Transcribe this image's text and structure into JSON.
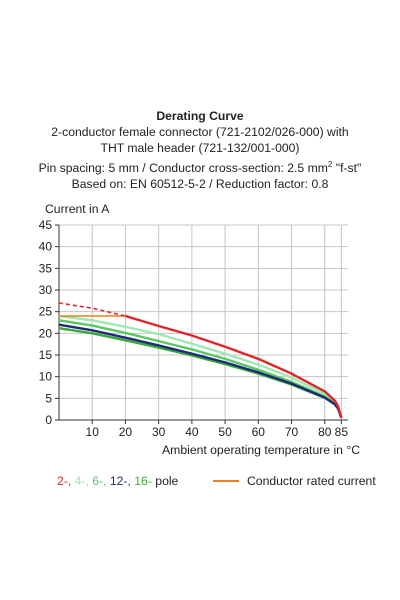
{
  "header": {
    "title": "Derating Curve",
    "line1": "2-conductor female connector (721-2102/026-000) with",
    "line2": "THT male header (721-132/001-000)",
    "line3_pre": "Pin spacing: 5 mm / Conductor cross-section: 2.5 mm",
    "line3_sup": "2",
    "line3_post": " \"f-st\"",
    "line4": "Based on: EN 60512-5-2 / Reduction factor: 0.8"
  },
  "legend": {
    "poles": [
      {
        "text": "2-",
        "color": "#e0262a"
      },
      {
        "text": "4-",
        "color": "#9fe8b4"
      },
      {
        "text": "6-",
        "color": "#59c95f"
      },
      {
        "text": "12-",
        "color": "#1f2a7a"
      },
      {
        "text": "16-",
        "color": "#3aa83a"
      }
    ],
    "separator": ", ",
    "suffix": " pole",
    "rated_label": "Conductor rated current",
    "rated_color": "#f07f1c"
  },
  "chart_data": {
    "type": "line",
    "title": "",
    "xlabel": "Ambient operating temperature in °C",
    "ylabel": "Current in A",
    "xlim": [
      0,
      87
    ],
    "ylim": [
      0,
      45
    ],
    "x_ticks": [
      10,
      20,
      30,
      40,
      50,
      60,
      70,
      80,
      85
    ],
    "y_ticks": [
      0,
      5,
      10,
      15,
      20,
      25,
      30,
      35,
      40,
      45
    ],
    "grid": true,
    "series": [
      {
        "name": "2- pole",
        "color": "#e0262a",
        "dashed_until_x": 20,
        "x": [
          0,
          10,
          20,
          30,
          40,
          50,
          60,
          70,
          80,
          83,
          84,
          85
        ],
        "y": [
          27.0,
          25.8,
          24.0,
          21.7,
          19.5,
          16.9,
          14.1,
          10.7,
          6.6,
          4.5,
          3.2,
          0.5
        ]
      },
      {
        "name": "4- pole",
        "color": "#9fe8b4",
        "x": [
          0,
          10,
          20,
          30,
          40,
          50,
          60,
          70,
          80,
          83,
          84,
          85
        ],
        "y": [
          24.0,
          23.0,
          21.5,
          19.8,
          17.6,
          15.3,
          12.8,
          9.8,
          6.0,
          4.1,
          3.0,
          0.5
        ]
      },
      {
        "name": "6- pole",
        "color": "#59c95f",
        "x": [
          0,
          10,
          20,
          30,
          40,
          50,
          60,
          70,
          80,
          83,
          84,
          85
        ],
        "y": [
          23.0,
          21.8,
          20.1,
          18.2,
          16.3,
          14.1,
          11.6,
          8.8,
          5.4,
          3.8,
          2.8,
          0.5
        ]
      },
      {
        "name": "12- pole",
        "color": "#1f2a7a",
        "x": [
          0,
          10,
          20,
          30,
          40,
          50,
          60,
          70,
          80,
          83,
          84,
          85
        ],
        "y": [
          22.0,
          20.7,
          19.0,
          17.2,
          15.3,
          13.3,
          11.0,
          8.4,
          5.2,
          3.7,
          2.7,
          0.5
        ]
      },
      {
        "name": "16- pole",
        "color": "#3aa83a",
        "x": [
          0,
          10,
          20,
          30,
          40,
          50,
          60,
          70,
          80,
          83,
          84,
          85
        ],
        "y": [
          21.2,
          20.0,
          18.4,
          16.7,
          14.9,
          12.9,
          10.7,
          8.2,
          5.1,
          3.6,
          2.6,
          0.5
        ]
      },
      {
        "name": "Conductor rated current",
        "color": "#f07f1c",
        "x": [
          0,
          20
        ],
        "y": [
          24.0,
          24.0
        ]
      }
    ]
  }
}
